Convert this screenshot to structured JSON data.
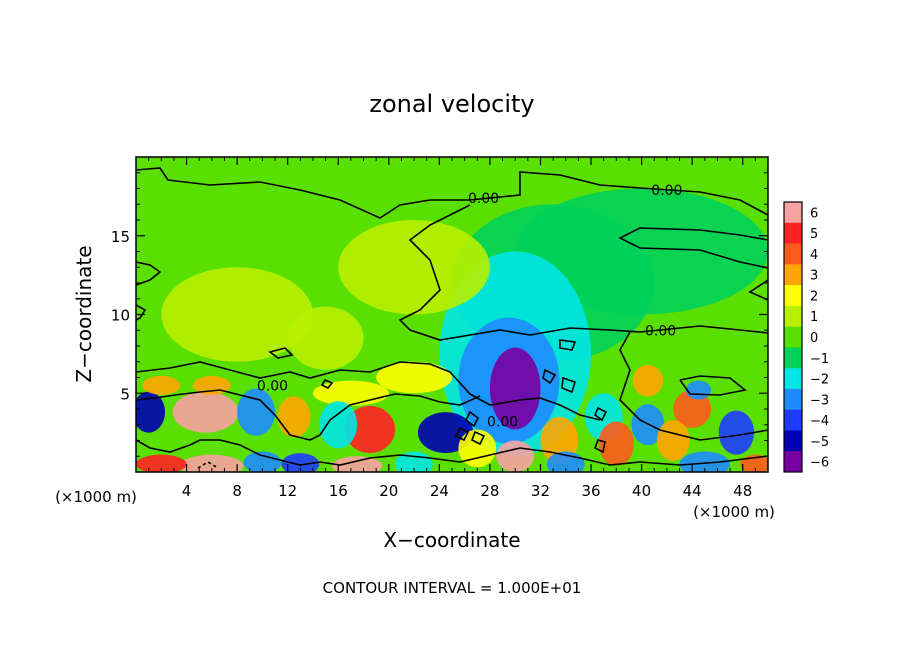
{
  "chart_data": {
    "type": "heatmap",
    "title": "zonal velocity",
    "xlabel": "X−coordinate",
    "ylabel": "Z−coordinate",
    "x_unit": "(×1000 m)",
    "z_unit": "(×1000 m)",
    "xlim": [
      0,
      50
    ],
    "ylim": [
      0,
      20
    ],
    "x_ticks": [
      4,
      8,
      12,
      16,
      20,
      24,
      28,
      32,
      36,
      40,
      44,
      48
    ],
    "y_ticks": [
      5,
      10,
      15
    ],
    "x_tick_labels": [
      "4",
      "8",
      "12",
      "16",
      "20",
      "24",
      "28",
      "32",
      "36",
      "40",
      "44",
      "48"
    ],
    "y_tick_labels": [
      "5",
      "10",
      "15"
    ],
    "colorbar": {
      "levels": [
        6,
        5,
        4,
        3,
        2,
        1,
        0,
        -1,
        -2,
        -3,
        -4,
        -5,
        -6
      ],
      "labels": [
        "6",
        "5",
        "4",
        "3",
        "2",
        "1",
        "0",
        "−1",
        "−2",
        "−3",
        "−4",
        "−5",
        "−6"
      ],
      "colors": [
        "#f7a1a1",
        "#ff2222",
        "#ff5a1e",
        "#ffa500",
        "#ffff00",
        "#b8f000",
        "#5ae000",
        "#00d25a",
        "#00e6e6",
        "#1e8cff",
        "#1e3cff",
        "#0000b4",
        "#7800a0"
      ]
    },
    "contour_labels": [
      {
        "text": "0.00",
        "x": 27.5,
        "z": 17.4
      },
      {
        "text": "0.00",
        "x": 42.0,
        "z": 17.9
      },
      {
        "text": "0.00",
        "x": 41.5,
        "z": 9.0
      },
      {
        "text": "0.00",
        "x": 10.8,
        "z": 5.5
      },
      {
        "text": "0.00",
        "x": 29.0,
        "z": 3.2
      }
    ],
    "footer": "CONTOUR INTERVAL = 1.000E+01",
    "field_features": [
      {
        "x": 30,
        "z": 5.3,
        "v": -6,
        "rx": 2.0,
        "rz": 2.6
      },
      {
        "x": 29.5,
        "z": 5.8,
        "v": -3.5,
        "rx": 4.0,
        "rz": 4.0
      },
      {
        "x": 30,
        "z": 7.5,
        "v": -1.6,
        "rx": 6.0,
        "rz": 6.5
      },
      {
        "x": 33,
        "z": 12.0,
        "v": -1.0,
        "rx": 8.0,
        "rz": 5.0
      },
      {
        "x": 40,
        "z": 14.0,
        "v": -0.8,
        "rx": 10.0,
        "rz": 4.0
      },
      {
        "x": 22,
        "z": 13.0,
        "v": 0.7,
        "rx": 6.0,
        "rz": 3.0
      },
      {
        "x": 8,
        "z": 10.0,
        "v": 0.6,
        "rx": 6.0,
        "rz": 3.0
      },
      {
        "x": 15,
        "z": 8.5,
        "v": 0.8,
        "rx": 3.0,
        "rz": 2.0
      },
      {
        "x": 1,
        "z": 3.8,
        "v": -5,
        "rx": 1.3,
        "rz": 1.3
      },
      {
        "x": 5.5,
        "z": 3.8,
        "v": 6,
        "rx": 2.6,
        "rz": 1.3
      },
      {
        "x": 9.5,
        "z": 3.8,
        "v": -3,
        "rx": 1.5,
        "rz": 1.5
      },
      {
        "x": 12.5,
        "z": 3.5,
        "v": 3,
        "rx": 1.3,
        "rz": 1.3
      },
      {
        "x": 16,
        "z": 3.0,
        "v": -2,
        "rx": 1.5,
        "rz": 1.5
      },
      {
        "x": 18.5,
        "z": 2.7,
        "v": 5,
        "rx": 2.0,
        "rz": 1.5
      },
      {
        "x": 24.5,
        "z": 2.5,
        "v": -5,
        "rx": 2.2,
        "rz": 1.3
      },
      {
        "x": 27,
        "z": 1.5,
        "v": 2,
        "rx": 1.5,
        "rz": 1.2
      },
      {
        "x": 30,
        "z": 1.0,
        "v": 6,
        "rx": 1.5,
        "rz": 1.0
      },
      {
        "x": 33.5,
        "z": 2.0,
        "v": 3,
        "rx": 1.5,
        "rz": 1.5
      },
      {
        "x": 38,
        "z": 1.8,
        "v": 4,
        "rx": 1.4,
        "rz": 1.4
      },
      {
        "x": 37,
        "z": 3.5,
        "v": -2,
        "rx": 1.5,
        "rz": 1.5
      },
      {
        "x": 40.5,
        "z": 3.0,
        "v": -3,
        "rx": 1.3,
        "rz": 1.3
      },
      {
        "x": 42.5,
        "z": 2.0,
        "v": 3,
        "rx": 1.3,
        "rz": 1.3
      },
      {
        "x": 44,
        "z": 4.0,
        "v": 3.5,
        "rx": 1.5,
        "rz": 1.2
      },
      {
        "x": 44.5,
        "z": 5.2,
        "v": -3.5,
        "rx": 1.0,
        "rz": 0.6
      },
      {
        "x": 47.5,
        "z": 2.5,
        "v": -4,
        "rx": 1.4,
        "rz": 1.4
      },
      {
        "x": 40.5,
        "z": 5.8,
        "v": 2.5,
        "rx": 1.2,
        "rz": 1.0
      },
      {
        "x": 2,
        "z": 5.5,
        "v": 3,
        "rx": 1.5,
        "rz": 0.6
      },
      {
        "x": 6,
        "z": 5.5,
        "v": 3,
        "rx": 1.5,
        "rz": 0.6
      },
      {
        "x": 17,
        "z": 5.0,
        "v": 2,
        "rx": 3.0,
        "rz": 0.8
      },
      {
        "x": 22,
        "z": 6.0,
        "v": 1.5,
        "rx": 3.0,
        "rz": 1.0
      },
      {
        "x": 2,
        "z": 0.5,
        "v": 5,
        "rx": 2.0,
        "rz": 0.6
      },
      {
        "x": 6,
        "z": 0.4,
        "v": 6,
        "rx": 2.5,
        "rz": 0.7
      },
      {
        "x": 10,
        "z": 0.6,
        "v": -3,
        "rx": 1.5,
        "rz": 0.7
      },
      {
        "x": 13,
        "z": 0.5,
        "v": -4,
        "rx": 1.5,
        "rz": 0.7
      },
      {
        "x": 17.5,
        "z": 0.4,
        "v": 6,
        "rx": 2.0,
        "rz": 0.6
      },
      {
        "x": 22,
        "z": 0.5,
        "v": -2.5,
        "rx": 1.5,
        "rz": 0.8
      },
      {
        "x": 34,
        "z": 0.5,
        "v": -3,
        "rx": 1.5,
        "rz": 0.8
      },
      {
        "x": 45,
        "z": 0.5,
        "v": -3,
        "rx": 2.0,
        "rz": 0.8
      },
      {
        "x": 49,
        "z": 0.5,
        "v": 4,
        "rx": 1.2,
        "rz": 0.6
      }
    ]
  }
}
